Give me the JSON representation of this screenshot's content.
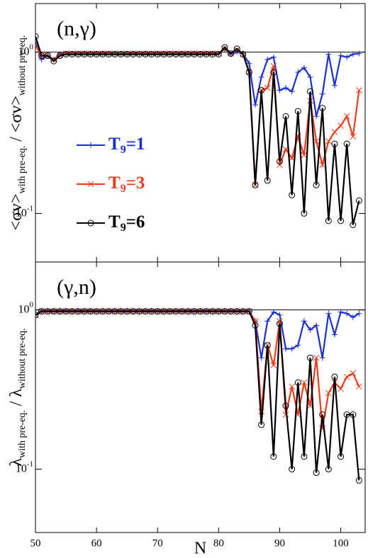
{
  "chart_data": [
    {
      "type": "line",
      "title": "(n,γ)",
      "ylabel": [
        "<σv>",
        "with pre-eq.",
        " / <σv>",
        "without pre-eq."
      ],
      "log_y": true,
      "xlim": [
        50,
        104
      ],
      "ylim": [
        0.05,
        2
      ],
      "hline": 1,
      "xticks": [
        50,
        60,
        70,
        80,
        90,
        100
      ],
      "yticks": [
        {
          "value": 0.1,
          "label": "10^-1"
        },
        {
          "value": 1,
          "label": "10^0"
        }
      ],
      "legend": "center-left",
      "x": [
        50,
        51,
        52,
        53,
        54,
        55,
        56,
        57,
        58,
        59,
        60,
        61,
        62,
        63,
        64,
        65,
        66,
        67,
        68,
        69,
        70,
        71,
        72,
        73,
        74,
        75,
        76,
        77,
        78,
        79,
        80,
        81,
        82,
        83,
        84,
        85,
        86,
        87,
        88,
        89,
        90,
        91,
        92,
        93,
        94,
        95,
        96,
        97,
        98,
        99,
        100,
        101,
        102,
        103
      ],
      "series": [
        {
          "name": "T9=1",
          "color": "#1a2fd6",
          "marker": "plus",
          "values": [
            1.15,
            0.9,
            0.95,
            0.9,
            0.97,
            0.98,
            0.98,
            0.98,
            0.98,
            0.98,
            0.98,
            0.98,
            0.98,
            0.98,
            0.98,
            0.98,
            0.98,
            0.98,
            0.98,
            0.98,
            0.98,
            0.98,
            0.98,
            0.98,
            0.98,
            0.98,
            0.98,
            0.98,
            0.98,
            0.98,
            0.98,
            1.05,
            0.97,
            1.0,
            0.98,
            0.85,
            0.47,
            0.7,
            0.9,
            0.93,
            0.58,
            0.6,
            0.57,
            0.75,
            0.8,
            0.7,
            0.4,
            0.55,
            0.97,
            0.62,
            0.95,
            0.93,
            0.97,
            0.98
          ]
        },
        {
          "name": "T9=3",
          "color": "#f03a18",
          "marker": "cross",
          "values": [
            1.1,
            0.95,
            0.95,
            0.9,
            0.96,
            0.98,
            0.98,
            0.98,
            0.98,
            0.98,
            0.98,
            0.98,
            0.98,
            0.98,
            0.98,
            0.98,
            0.98,
            0.98,
            0.98,
            0.98,
            0.98,
            0.98,
            0.98,
            0.98,
            0.98,
            0.98,
            0.98,
            0.98,
            0.98,
            0.98,
            0.98,
            1.05,
            0.98,
            1.03,
            0.97,
            0.75,
            0.15,
            0.58,
            0.6,
            0.82,
            0.2,
            0.25,
            0.22,
            0.3,
            0.23,
            0.5,
            0.28,
            0.2,
            0.28,
            0.32,
            0.35,
            0.4,
            0.3,
            0.58
          ]
        },
        {
          "name": "T9=6",
          "color": "#000000",
          "marker": "circle",
          "values": [
            1.25,
            0.95,
            0.95,
            0.88,
            0.95,
            0.97,
            0.97,
            0.97,
            0.97,
            0.97,
            0.97,
            0.97,
            0.97,
            0.97,
            0.97,
            0.97,
            0.97,
            0.97,
            0.97,
            0.97,
            0.97,
            0.97,
            0.97,
            0.97,
            0.97,
            0.97,
            0.97,
            0.97,
            0.97,
            0.97,
            0.97,
            1.07,
            0.98,
            1.05,
            0.97,
            0.75,
            0.15,
            0.58,
            0.16,
            0.75,
            0.21,
            0.4,
            0.13,
            0.43,
            0.1,
            0.57,
            0.15,
            0.45,
            0.09,
            0.27,
            0.09,
            0.27,
            0.085,
            0.12
          ]
        }
      ]
    },
    {
      "type": "line",
      "title": "(γ,n)",
      "ylabel": [
        "λ",
        "with pre-eq.",
        " / λ",
        "without pre-eq."
      ],
      "xlabel": "N",
      "log_y": true,
      "xlim": [
        50,
        104
      ],
      "ylim": [
        0.04,
        2
      ],
      "hline": 1,
      "xticks": [
        50,
        60,
        70,
        80,
        90,
        100
      ],
      "yticks": [
        {
          "value": 0.1,
          "label": "10^-1"
        },
        {
          "value": 1,
          "label": "10^0"
        }
      ],
      "x": [
        50,
        51,
        52,
        53,
        54,
        55,
        56,
        57,
        58,
        59,
        60,
        61,
        62,
        63,
        64,
        65,
        66,
        67,
        68,
        69,
        70,
        71,
        72,
        73,
        74,
        75,
        76,
        77,
        78,
        79,
        80,
        81,
        82,
        83,
        84,
        85,
        86,
        87,
        88,
        89,
        90,
        91,
        92,
        93,
        94,
        95,
        96,
        97,
        98,
        99,
        100,
        101,
        102,
        103
      ],
      "series": [
        {
          "color": "#1a2fd6",
          "marker": "plus",
          "values": [
            0.93,
            0.98,
            0.98,
            0.98,
            0.98,
            0.98,
            0.98,
            0.98,
            0.98,
            0.98,
            0.98,
            0.98,
            0.98,
            0.98,
            0.98,
            0.98,
            0.98,
            0.98,
            0.98,
            0.98,
            0.98,
            0.98,
            0.98,
            0.98,
            0.98,
            0.98,
            0.98,
            0.98,
            0.98,
            0.98,
            0.98,
            0.98,
            0.98,
            0.98,
            0.98,
            0.98,
            0.85,
            0.5,
            0.85,
            0.97,
            0.93,
            0.57,
            0.57,
            0.6,
            0.85,
            0.75,
            0.8,
            0.5,
            0.95,
            0.7,
            0.97,
            0.95,
            0.9,
            0.95
          ]
        },
        {
          "color": "#f03a18",
          "marker": "cross",
          "values": [
            0.93,
            0.98,
            0.98,
            0.98,
            0.98,
            0.98,
            0.98,
            0.98,
            0.98,
            0.98,
            0.98,
            0.98,
            0.98,
            0.98,
            0.98,
            0.98,
            0.98,
            0.98,
            0.98,
            0.98,
            0.98,
            0.98,
            0.98,
            0.98,
            0.98,
            0.98,
            0.98,
            0.98,
            0.98,
            0.98,
            0.98,
            0.98,
            0.98,
            0.98,
            0.98,
            0.98,
            0.85,
            0.23,
            0.6,
            0.45,
            0.85,
            0.22,
            0.33,
            0.22,
            0.35,
            0.25,
            0.5,
            0.18,
            0.3,
            0.35,
            0.32,
            0.38,
            0.4,
            0.33
          ]
        },
        {
          "color": "#000000",
          "marker": "circle",
          "values": [
            0.93,
            0.98,
            0.98,
            0.98,
            0.98,
            0.98,
            0.98,
            0.98,
            0.98,
            0.98,
            0.98,
            0.98,
            0.98,
            0.98,
            0.98,
            0.98,
            0.98,
            0.98,
            0.98,
            0.98,
            0.98,
            0.98,
            0.98,
            0.98,
            0.98,
            0.98,
            0.98,
            0.98,
            0.98,
            0.98,
            0.98,
            0.98,
            0.98,
            0.98,
            0.98,
            0.98,
            0.8,
            0.19,
            0.6,
            0.12,
            0.82,
            0.25,
            0.1,
            0.35,
            0.12,
            0.5,
            0.095,
            0.22,
            0.1,
            0.38,
            0.12,
            0.22,
            0.22,
            0.085
          ]
        }
      ]
    }
  ]
}
